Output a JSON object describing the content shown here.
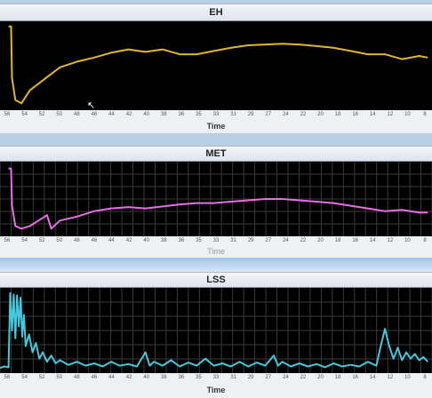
{
  "tick_labels": [
    "56",
    "54",
    "52",
    "50",
    "48",
    "46",
    "44",
    "42",
    "40",
    "38",
    "36",
    "35",
    "33",
    "31",
    "29",
    "27",
    "24",
    "22",
    "20",
    "18",
    "16",
    "14",
    "12",
    "10",
    "8"
  ],
  "charts": [
    {
      "title": "EH",
      "axis_title": "Time",
      "color": "#e0b62e",
      "grid": false,
      "baseline": 0.98,
      "drop_x": 55.7,
      "series": [
        [
          56,
          0.98
        ],
        [
          55.7,
          0.98
        ],
        [
          55.6,
          0.35
        ],
        [
          55.2,
          0.08
        ],
        [
          54.5,
          0.04
        ],
        [
          53.5,
          0.2
        ],
        [
          52.5,
          0.28
        ],
        [
          51,
          0.4
        ],
        [
          50,
          0.48
        ],
        [
          48,
          0.55
        ],
        [
          46,
          0.6
        ],
        [
          44,
          0.66
        ],
        [
          42,
          0.7
        ],
        [
          40,
          0.67
        ],
        [
          38,
          0.7
        ],
        [
          36,
          0.64
        ],
        [
          34,
          0.64
        ],
        [
          32,
          0.68
        ],
        [
          30,
          0.72
        ],
        [
          28,
          0.75
        ],
        [
          26,
          0.76
        ],
        [
          24,
          0.77
        ],
        [
          22,
          0.76
        ],
        [
          20,
          0.74
        ],
        [
          18,
          0.72
        ],
        [
          16,
          0.68
        ],
        [
          14,
          0.64
        ],
        [
          12,
          0.64
        ],
        [
          10,
          0.58
        ],
        [
          8,
          0.62
        ],
        [
          7,
          0.6
        ]
      ]
    },
    {
      "title": "MET",
      "axis_title": "Time",
      "color": "#e66fe4",
      "grid": true,
      "baseline": 0.95,
      "drop_x": 55.7,
      "series": [
        [
          56,
          0.95
        ],
        [
          55.7,
          0.95
        ],
        [
          55.6,
          0.4
        ],
        [
          55.2,
          0.1
        ],
        [
          54.5,
          0.06
        ],
        [
          53.5,
          0.1
        ],
        [
          52.5,
          0.18
        ],
        [
          51.5,
          0.26
        ],
        [
          51,
          0.06
        ],
        [
          50,
          0.18
        ],
        [
          48,
          0.24
        ],
        [
          46,
          0.32
        ],
        [
          44,
          0.36
        ],
        [
          42,
          0.38
        ],
        [
          40,
          0.36
        ],
        [
          38,
          0.39
        ],
        [
          36,
          0.42
        ],
        [
          34,
          0.44
        ],
        [
          32,
          0.44
        ],
        [
          30,
          0.46
        ],
        [
          28,
          0.48
        ],
        [
          26,
          0.5
        ],
        [
          24,
          0.5
        ],
        [
          22,
          0.48
        ],
        [
          20,
          0.46
        ],
        [
          18,
          0.44
        ],
        [
          16,
          0.4
        ],
        [
          14,
          0.36
        ],
        [
          12,
          0.32
        ],
        [
          10,
          0.34
        ],
        [
          8,
          0.3
        ],
        [
          7,
          0.3
        ]
      ]
    },
    {
      "title": "LSS",
      "axis_title": "Time",
      "color": "#46c8dc",
      "grid": true,
      "baseline": 0.0,
      "drop_x": 0,
      "series": [
        [
          57,
          0.02
        ],
        [
          56.5,
          0.04
        ],
        [
          56,
          0.03
        ],
        [
          55.8,
          0.98
        ],
        [
          55.6,
          0.5
        ],
        [
          55.4,
          0.96
        ],
        [
          55.2,
          0.4
        ],
        [
          55,
          0.95
        ],
        [
          54.8,
          0.55
        ],
        [
          54.6,
          0.92
        ],
        [
          54.4,
          0.42
        ],
        [
          54.2,
          0.7
        ],
        [
          54,
          0.3
        ],
        [
          53.6,
          0.45
        ],
        [
          53.2,
          0.22
        ],
        [
          52.8,
          0.34
        ],
        [
          52.4,
          0.14
        ],
        [
          52,
          0.22
        ],
        [
          51.5,
          0.1
        ],
        [
          51,
          0.18
        ],
        [
          50.5,
          0.08
        ],
        [
          50,
          0.12
        ],
        [
          49,
          0.06
        ],
        [
          48,
          0.1
        ],
        [
          47,
          0.05
        ],
        [
          46,
          0.08
        ],
        [
          45,
          0.04
        ],
        [
          44,
          0.1
        ],
        [
          43,
          0.05
        ],
        [
          42,
          0.07
        ],
        [
          41,
          0.04
        ],
        [
          40,
          0.22
        ],
        [
          39.5,
          0.05
        ],
        [
          39,
          0.1
        ],
        [
          38,
          0.05
        ],
        [
          37,
          0.12
        ],
        [
          36,
          0.04
        ],
        [
          35,
          0.09
        ],
        [
          34,
          0.05
        ],
        [
          33,
          0.14
        ],
        [
          32,
          0.05
        ],
        [
          31,
          0.08
        ],
        [
          30,
          0.04
        ],
        [
          29,
          0.1
        ],
        [
          28,
          0.04
        ],
        [
          27,
          0.09
        ],
        [
          26,
          0.05
        ],
        [
          25,
          0.18
        ],
        [
          24.5,
          0.05
        ],
        [
          24,
          0.1
        ],
        [
          23,
          0.04
        ],
        [
          22,
          0.08
        ],
        [
          21,
          0.04
        ],
        [
          20,
          0.07
        ],
        [
          19,
          0.03
        ],
        [
          18,
          0.08
        ],
        [
          17,
          0.04
        ],
        [
          16,
          0.06
        ],
        [
          15,
          0.04
        ],
        [
          14,
          0.1
        ],
        [
          13,
          0.05
        ],
        [
          12.5,
          0.3
        ],
        [
          12,
          0.52
        ],
        [
          11.5,
          0.3
        ],
        [
          11,
          0.14
        ],
        [
          10.5,
          0.28
        ],
        [
          10,
          0.12
        ],
        [
          9.5,
          0.22
        ],
        [
          9,
          0.14
        ],
        [
          8.5,
          0.2
        ],
        [
          8,
          0.12
        ],
        [
          7.5,
          0.16
        ],
        [
          7,
          0.1
        ]
      ]
    }
  ]
}
